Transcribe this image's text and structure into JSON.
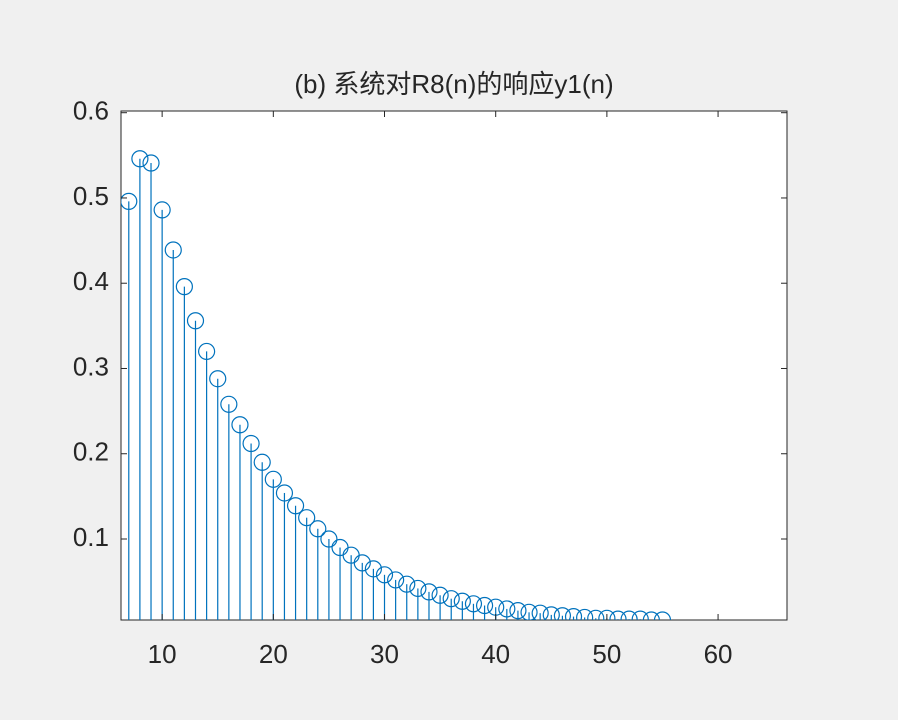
{
  "chart_data": {
    "type": "stem",
    "title": "(b) 系统对R8(n)的响应y1(n)",
    "x": [
      7,
      8,
      9,
      10,
      11,
      12,
      13,
      14,
      15,
      16,
      17,
      18,
      19,
      20,
      21,
      22,
      23,
      24,
      25,
      26,
      27,
      28,
      29,
      30,
      31,
      32,
      33,
      34,
      35,
      36,
      37,
      38,
      39,
      40,
      41,
      42,
      43,
      44,
      45,
      46,
      47,
      48,
      49,
      50,
      51,
      52,
      53,
      54,
      55
    ],
    "values": [
      0.496,
      0.546,
      0.541,
      0.486,
      0.439,
      0.396,
      0.356,
      0.32,
      0.288,
      0.258,
      0.234,
      0.212,
      0.19,
      0.17,
      0.154,
      0.139,
      0.125,
      0.112,
      0.1,
      0.09,
      0.081,
      0.072,
      0.065,
      0.058,
      0.052,
      0.047,
      0.042,
      0.038,
      0.034,
      0.03,
      0.027,
      0.024,
      0.022,
      0.02,
      0.018,
      0.016,
      0.014,
      0.013,
      0.011,
      0.01,
      0.009,
      0.008,
      0.007,
      0.007,
      0.006,
      0.006,
      0.006,
      0.005,
      0.005
    ],
    "color": "#0072bd",
    "xlim": [
      6.3,
      66.2
    ],
    "xticks": [
      10,
      20,
      30,
      40,
      50,
      60
    ],
    "ylim": [
      0.005,
      0.602
    ],
    "yticks": [
      0.1,
      0.2,
      0.3,
      0.4,
      0.5,
      0.6
    ]
  }
}
